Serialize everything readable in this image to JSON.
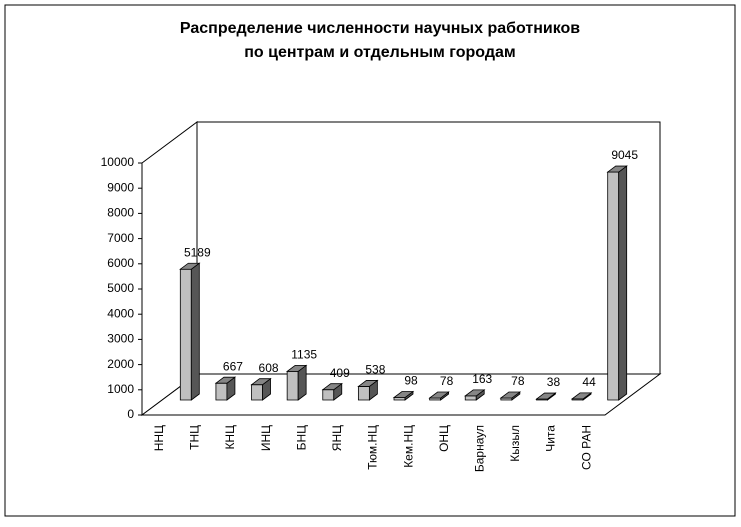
{
  "chart_data": {
    "type": "bar3d",
    "title": [
      "Распределение численности научных работников",
      "по центрам и отдельным городам"
    ],
    "categories": [
      "ННЦ",
      "ТНЦ",
      "КНЦ",
      "ИНЦ",
      "БНЦ",
      "ЯНЦ",
      "Тюм.НЦ",
      "Кем.НЦ",
      "ОНЦ",
      "Барнаул",
      "Кызыл",
      "Чита",
      "СО РАН"
    ],
    "values": [
      5189,
      667,
      608,
      1135,
      409,
      538,
      98,
      78,
      163,
      78,
      38,
      44,
      9045
    ],
    "color": "#c0c0c0",
    "ylim": [
      0,
      10000
    ],
    "yticks": [
      0,
      1000,
      2000,
      3000,
      4000,
      5000,
      6000,
      7000,
      8000,
      9000,
      10000
    ],
    "grid": false
  }
}
